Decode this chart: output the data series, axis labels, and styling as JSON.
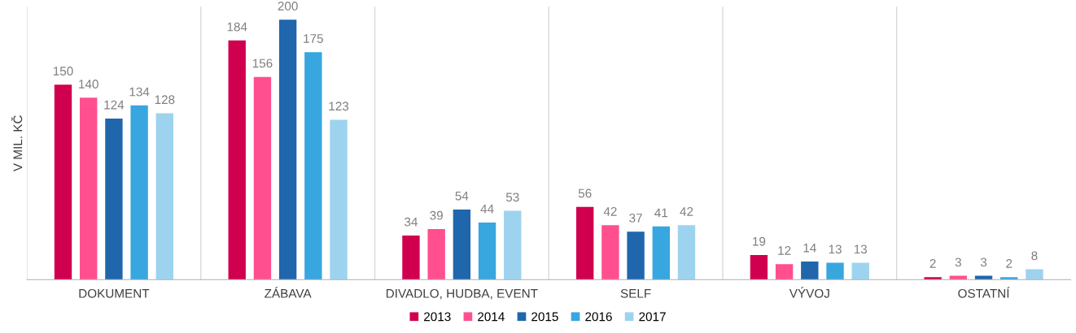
{
  "chart_data": {
    "type": "bar",
    "ylabel": "V MIL. KČ",
    "categories": [
      "DOKUMENT",
      "ZÁBAVA",
      "DIVADLO, HUDBA, EVENT",
      "SELF",
      "VÝVOJ",
      "OSTATNÍ"
    ],
    "series": [
      {
        "name": "2013",
        "color": "#d0004f",
        "values": [
          150,
          184,
          34,
          56,
          19,
          2
        ]
      },
      {
        "name": "2014",
        "color": "#ff4f8f",
        "values": [
          140,
          156,
          39,
          42,
          12,
          3
        ]
      },
      {
        "name": "2015",
        "color": "#1f66ad",
        "values": [
          124,
          200,
          54,
          37,
          14,
          3
        ]
      },
      {
        "name": "2016",
        "color": "#38a6df",
        "values": [
          134,
          175,
          44,
          41,
          13,
          2
        ]
      },
      {
        "name": "2017",
        "color": "#9dd3ee",
        "values": [
          128,
          123,
          53,
          42,
          13,
          8
        ]
      }
    ],
    "data_labels": true,
    "grid": "x",
    "legend": "bottom"
  }
}
